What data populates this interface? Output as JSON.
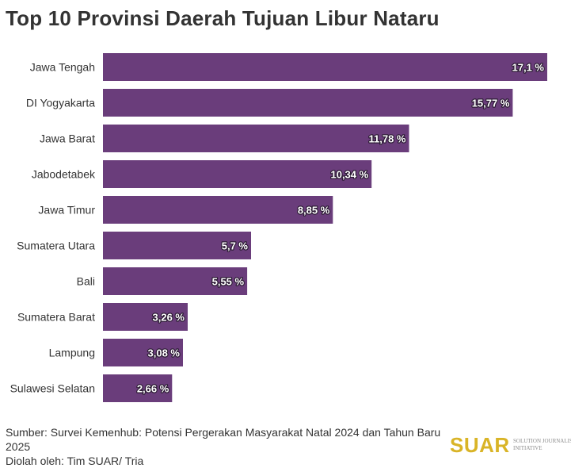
{
  "title": "Top 10 Provinsi Daerah Tujuan Libur Nataru",
  "source": {
    "line1": "Sumber: Survei Kemenhub: Potensi Pergerakan Masyarakat Natal 2024 dan Tahun Baru 2025",
    "line2": "Diolah oleh: Tim SUAR/ Tria"
  },
  "logo": {
    "word": "SUAR",
    "tagline_1": "SOLUTION JOURNALISM",
    "tagline_2": "INITIATIVE"
  },
  "colors": {
    "bar": "#6a3d7b",
    "text": "#333333",
    "logo": "#d9b427"
  },
  "chart_data": {
    "type": "bar",
    "orientation": "horizontal",
    "categories": [
      "Jawa Tengah",
      "DI Yogyakarta",
      "Jawa Barat",
      "Jabodetabek",
      "Jawa Timur",
      "Sumatera Utara",
      "Bali",
      "Sumatera Barat",
      "Lampung",
      "Sulawesi Selatan"
    ],
    "values": [
      17.1,
      15.77,
      11.78,
      10.34,
      8.85,
      5.7,
      5.55,
      3.26,
      3.08,
      2.66
    ],
    "value_labels": [
      "17,1 %",
      "15,77 %",
      "11,78 %",
      "10,34 %",
      "8,85 %",
      "5,7 %",
      "5,55 %",
      "3,26 %",
      "3,08 %",
      "2,66 %"
    ],
    "unit": "%",
    "xlim": [
      0,
      17.1
    ],
    "grid": false,
    "legend": "none",
    "xlabel": "",
    "ylabel": ""
  }
}
